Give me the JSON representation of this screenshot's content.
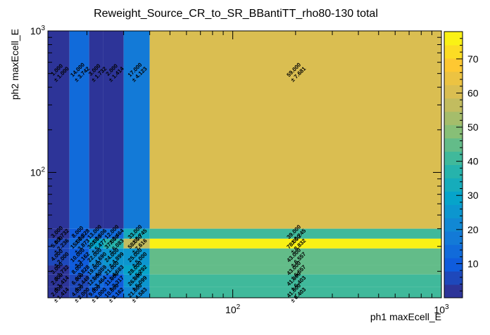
{
  "chart_data": {
    "type": "heatmap",
    "title": "Reweight_Source_CR_to_SR_BBantiTT_rho80-130 total",
    "xlabel": "ph1 maxEcell_E",
    "ylabel": "ph2 maxEcell_E",
    "x_scale": "log",
    "y_scale": "log",
    "xlim": [
      13,
      1000
    ],
    "ylim": [
      13,
      1000
    ],
    "x_tick_labels": [
      {
        "value": 100,
        "base": "10",
        "exp": "2"
      },
      {
        "value": 1000,
        "base": "10",
        "exp": "3"
      }
    ],
    "y_tick_labels": [
      {
        "value": 100,
        "base": "10",
        "exp": "2"
      },
      {
        "value": 1000,
        "base": "10",
        "exp": "3"
      }
    ],
    "zlim": [
      0,
      78
    ],
    "z_ticks": [
      10,
      20,
      30,
      40,
      50,
      60,
      70
    ],
    "x_edges": [
      13,
      16.5,
      20.5,
      24,
      30,
      40,
      1000
    ],
    "y_edges": [
      13,
      15.5,
      19,
      22,
      29,
      34,
      40,
      1000
    ],
    "cells": [
      {
        "xi": 0,
        "yi": 6,
        "value": 1.0,
        "error": 1.0
      },
      {
        "xi": 1,
        "yi": 6,
        "value": 14.0,
        "error": 3.742
      },
      {
        "xi": 2,
        "yi": 6,
        "value": 3.0,
        "error": 1.732
      },
      {
        "xi": 3,
        "yi": 6,
        "value": 2.0,
        "error": 1.414
      },
      {
        "xi": 4,
        "yi": 6,
        "value": 17.0,
        "error": 4.123
      },
      {
        "xi": 5,
        "yi": 6,
        "value": 59.0,
        "error": 7.681
      },
      {
        "xi": 0,
        "yi": 5,
        "value": 3.0,
        "error": 1.732
      },
      {
        "xi": 1,
        "yi": 5,
        "value": 8.0,
        "error": 2.828
      },
      {
        "xi": 2,
        "yi": 5,
        "value": 13.0,
        "error": 3.606
      },
      {
        "xi": 3,
        "yi": 5,
        "value": 12.0,
        "error": 3.464
      },
      {
        "xi": 4,
        "yi": 5,
        "value": 33.0,
        "error": 5.745
      },
      {
        "xi": 5,
        "yi": 5,
        "value": 39.0,
        "error": 6.245
      },
      {
        "xi": 0,
        "yi": 4,
        "value": 5.0,
        "error": 2.236
      },
      {
        "xi": 1,
        "yi": 4,
        "value": 15.0,
        "error": 3.873
      },
      {
        "xi": 2,
        "yi": 4,
        "value": 30.0,
        "error": 5.477
      },
      {
        "xi": 3,
        "yi": 4,
        "value": 37.0,
        "error": 6.083
      },
      {
        "xi": 4,
        "yi": 4,
        "value": 58.0,
        "error": 7.616
      },
      {
        "xi": 5,
        "yi": 4,
        "value": 78.0,
        "error": 8.832
      },
      {
        "xi": 0,
        "yi": 3,
        "value": 4.0,
        "error": 2.0
      },
      {
        "xi": 1,
        "yi": 3,
        "value": 10.0,
        "error": 3.162
      },
      {
        "xi": 2,
        "yi": 3,
        "value": 22.0,
        "error": 4.69
      },
      {
        "xi": 3,
        "yi": 3,
        "value": 24.0,
        "error": 4.899
      },
      {
        "xi": 4,
        "yi": 3,
        "value": 25.0,
        "error": 5.0
      },
      {
        "xi": 5,
        "yi": 3,
        "value": 43.0,
        "error": 6.557
      },
      {
        "xi": 0,
        "yi": 2,
        "value": 3.0,
        "error": 1.732
      },
      {
        "xi": 1,
        "yi": 2,
        "value": 8.0,
        "error": 2.828
      },
      {
        "xi": 2,
        "yi": 2,
        "value": 19.0,
        "error": 4.359
      },
      {
        "xi": 3,
        "yi": 2,
        "value": 21.0,
        "error": 4.583
      },
      {
        "xi": 4,
        "yi": 2,
        "value": 28.0,
        "error": 5.292
      },
      {
        "xi": 5,
        "yi": 2,
        "value": 43.0,
        "error": 6.557
      },
      {
        "xi": 0,
        "yi": 1,
        "value": 2.0,
        "error": 1.414
      },
      {
        "xi": 1,
        "yi": 1,
        "value": 6.0,
        "error": 2.449
      },
      {
        "xi": 2,
        "yi": 1,
        "value": 12.0,
        "error": 3.464
      },
      {
        "xi": 3,
        "yi": 1,
        "value": 11.0,
        "error": 3.317
      },
      {
        "xi": 4,
        "yi": 1,
        "value": 26.0,
        "error": 5.099
      },
      {
        "xi": 5,
        "yi": 1,
        "value": 41.0,
        "error": 6.403
      },
      {
        "xi": 0,
        "yi": 0,
        "value": 2.0,
        "error": 1.414
      },
      {
        "xi": 1,
        "yi": 0,
        "value": 4.0,
        "error": 2.0
      },
      {
        "xi": 2,
        "yi": 0,
        "value": 9.0,
        "error": 3.0
      },
      {
        "xi": 3,
        "yi": 0,
        "value": 10.0,
        "error": 3.162
      },
      {
        "xi": 4,
        "yi": 0,
        "value": 21.0,
        "error": 4.583
      },
      {
        "xi": 5,
        "yi": 0,
        "value": 41.0,
        "error": 6.403
      }
    ],
    "palette": [
      "#352a87",
      "#0f5cdd",
      "#1481d6",
      "#06a4ca",
      "#2eb7a4",
      "#87bf77",
      "#d1bb59",
      "#fec832",
      "#f9fb0e"
    ],
    "grid": false,
    "legend": "none"
  }
}
